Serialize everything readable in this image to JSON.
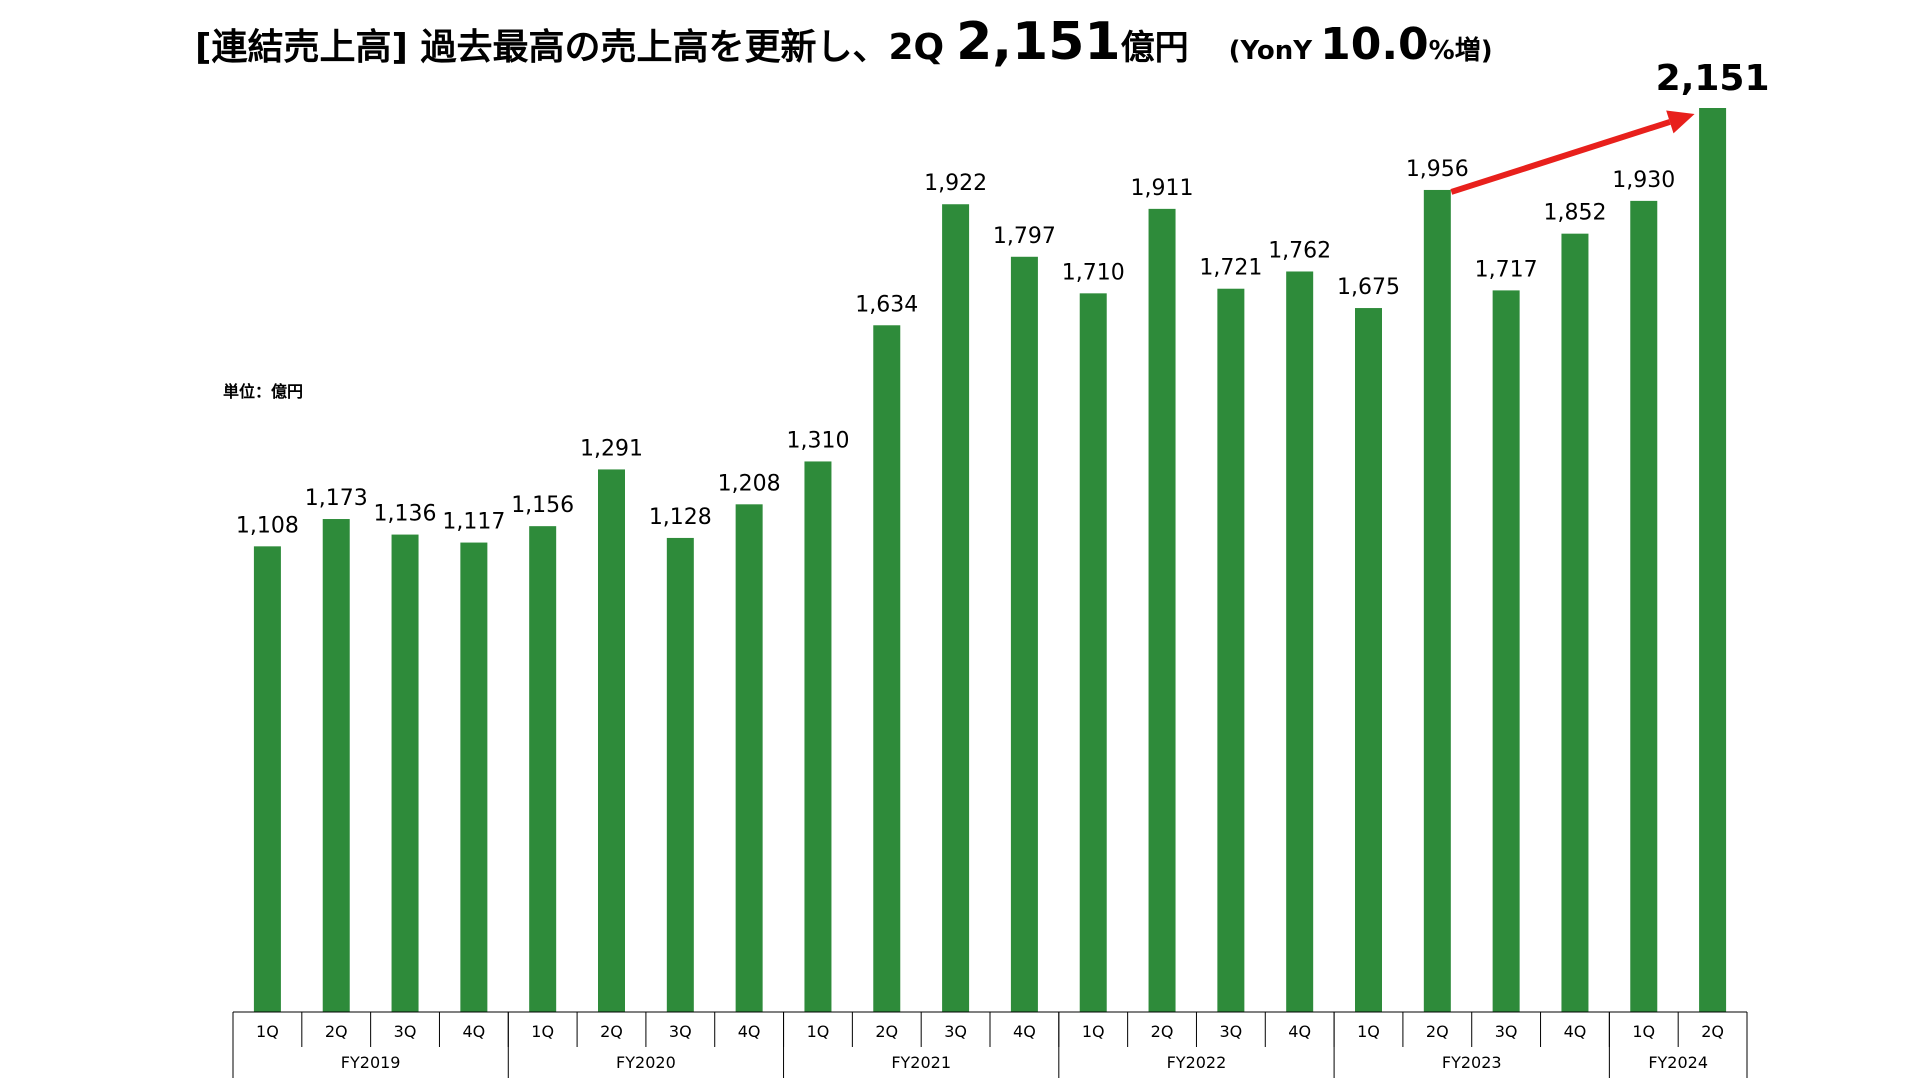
{
  "header": {
    "title_main": "[連結売上高] 過去最高の売上高を更新し、2Q",
    "title_value": "2,151",
    "title_unit": "億円",
    "yony_prefix": "(YonY",
    "yony_value": "10.0",
    "yony_suffix": "%増)"
  },
  "unit_label": "単位：億円",
  "chart_data": {
    "type": "bar",
    "title": "[連結売上高] 過去最高の売上高を更新し、2Q 2,151億円 (YonY 10.0%増)",
    "ylabel": "単位：億円",
    "ylim": [
      0,
      2151
    ],
    "grid": false,
    "bar_color": "#2e8b3a",
    "arrow_color": "#e8201c",
    "categories": [
      "1Q",
      "2Q",
      "3Q",
      "4Q",
      "1Q",
      "2Q",
      "3Q",
      "4Q",
      "1Q",
      "2Q",
      "3Q",
      "4Q",
      "1Q",
      "2Q",
      "3Q",
      "4Q",
      "1Q",
      "2Q",
      "3Q",
      "4Q",
      "1Q",
      "2Q"
    ],
    "values": [
      1108,
      1173,
      1136,
      1117,
      1156,
      1291,
      1128,
      1208,
      1310,
      1634,
      1922,
      1797,
      1710,
      1911,
      1721,
      1762,
      1675,
      1956,
      1717,
      1852,
      1930,
      2151
    ],
    "value_labels": [
      "1,108",
      "1,173",
      "1,136",
      "1,117",
      "1,156",
      "1,291",
      "1,128",
      "1,208",
      "1,310",
      "1,634",
      "1,922",
      "1,797",
      "1,710",
      "1,911",
      "1,721",
      "1,762",
      "1,675",
      "1,956",
      "1,717",
      "1,852",
      "1,930",
      "2,151"
    ],
    "groups": [
      {
        "label": "FY2019",
        "count": 4
      },
      {
        "label": "FY2020",
        "count": 4
      },
      {
        "label": "FY2021",
        "count": 4
      },
      {
        "label": "FY2022",
        "count": 4
      },
      {
        "label": "FY2023",
        "count": 4
      },
      {
        "label": "FY2024",
        "count": 2
      }
    ],
    "annotation": {
      "type": "arrow",
      "from_index": 17,
      "to_index": 21
    }
  }
}
